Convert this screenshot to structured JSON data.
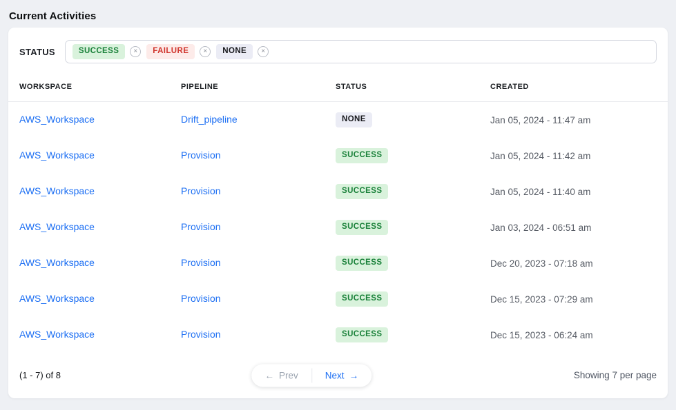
{
  "page": {
    "title": "Current Activities"
  },
  "filter": {
    "label": "STATUS",
    "remove_icon_glyph": "×",
    "tags": [
      {
        "label": "SUCCESS",
        "type": "success"
      },
      {
        "label": "FAILURE",
        "type": "failure"
      },
      {
        "label": "NONE",
        "type": "none"
      }
    ]
  },
  "table": {
    "columns": {
      "workspace": "WORKSPACE",
      "pipeline": "PIPELINE",
      "status": "STATUS",
      "created": "CREATED"
    },
    "rows": [
      {
        "workspace": "AWS_Workspace",
        "pipeline": "Drift_pipeline",
        "status": "NONE",
        "status_type": "none",
        "created": "Jan 05, 2024 - 11:47 am"
      },
      {
        "workspace": "AWS_Workspace",
        "pipeline": "Provision",
        "status": "SUCCESS",
        "status_type": "success",
        "created": "Jan 05, 2024 - 11:42 am"
      },
      {
        "workspace": "AWS_Workspace",
        "pipeline": "Provision",
        "status": "SUCCESS",
        "status_type": "success",
        "created": "Jan 05, 2024 - 11:40 am"
      },
      {
        "workspace": "AWS_Workspace",
        "pipeline": "Provision",
        "status": "SUCCESS",
        "status_type": "success",
        "created": "Jan 03, 2024 - 06:51 am"
      },
      {
        "workspace": "AWS_Workspace",
        "pipeline": "Provision",
        "status": "SUCCESS",
        "status_type": "success",
        "created": "Dec 20, 2023 - 07:18 am"
      },
      {
        "workspace": "AWS_Workspace",
        "pipeline": "Provision",
        "status": "SUCCESS",
        "status_type": "success",
        "created": "Dec 15, 2023 - 07:29 am"
      },
      {
        "workspace": "AWS_Workspace",
        "pipeline": "Provision",
        "status": "SUCCESS",
        "status_type": "success",
        "created": "Dec 15, 2023 - 06:24 am"
      }
    ]
  },
  "pagination": {
    "range_label": "(1 - 7) of 8",
    "prev_arrow": "←",
    "prev_label": "Prev",
    "next_label": "Next",
    "next_arrow": "→",
    "per_page_label": "Showing 7 per page"
  },
  "colors": {
    "accent_blue": "#1b6ef3",
    "success_bg": "#d9f2dc",
    "success_text": "#188038",
    "failure_bg": "#fdebe9",
    "failure_text": "#d0342c",
    "none_bg": "#ebecf5",
    "none_text": "#17181c",
    "page_bg": "#eef0f4",
    "card_bg": "#ffffff"
  }
}
